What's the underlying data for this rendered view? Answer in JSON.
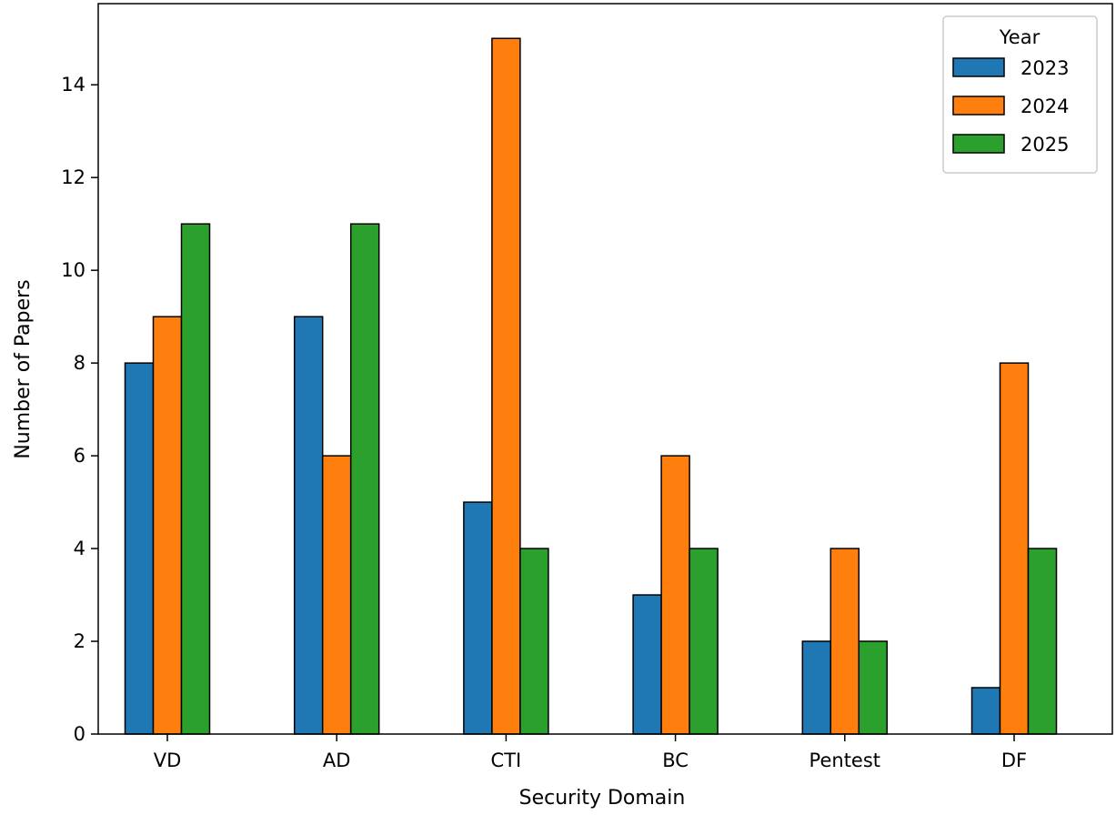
{
  "chart_data": {
    "type": "bar",
    "xlabel": "Security Domain",
    "ylabel": "Number of Papers",
    "categories": [
      "VD",
      "AD",
      "CTI",
      "BC",
      "Pentest",
      "DF"
    ],
    "series": [
      {
        "name": "2023",
        "color": "#1f77b4",
        "values": [
          8,
          9,
          5,
          3,
          2,
          1
        ]
      },
      {
        "name": "2024",
        "color": "#ff7f0e",
        "values": [
          9,
          6,
          15,
          6,
          4,
          8
        ]
      },
      {
        "name": "2025",
        "color": "#2ca02c",
        "values": [
          11,
          11,
          4,
          4,
          2,
          4
        ]
      }
    ],
    "ylim": [
      0,
      15.75
    ],
    "yticks": [
      0,
      2,
      4,
      6,
      8,
      10,
      12,
      14
    ],
    "legend": {
      "title": "Year",
      "placement": "top-right"
    },
    "grid": false
  }
}
